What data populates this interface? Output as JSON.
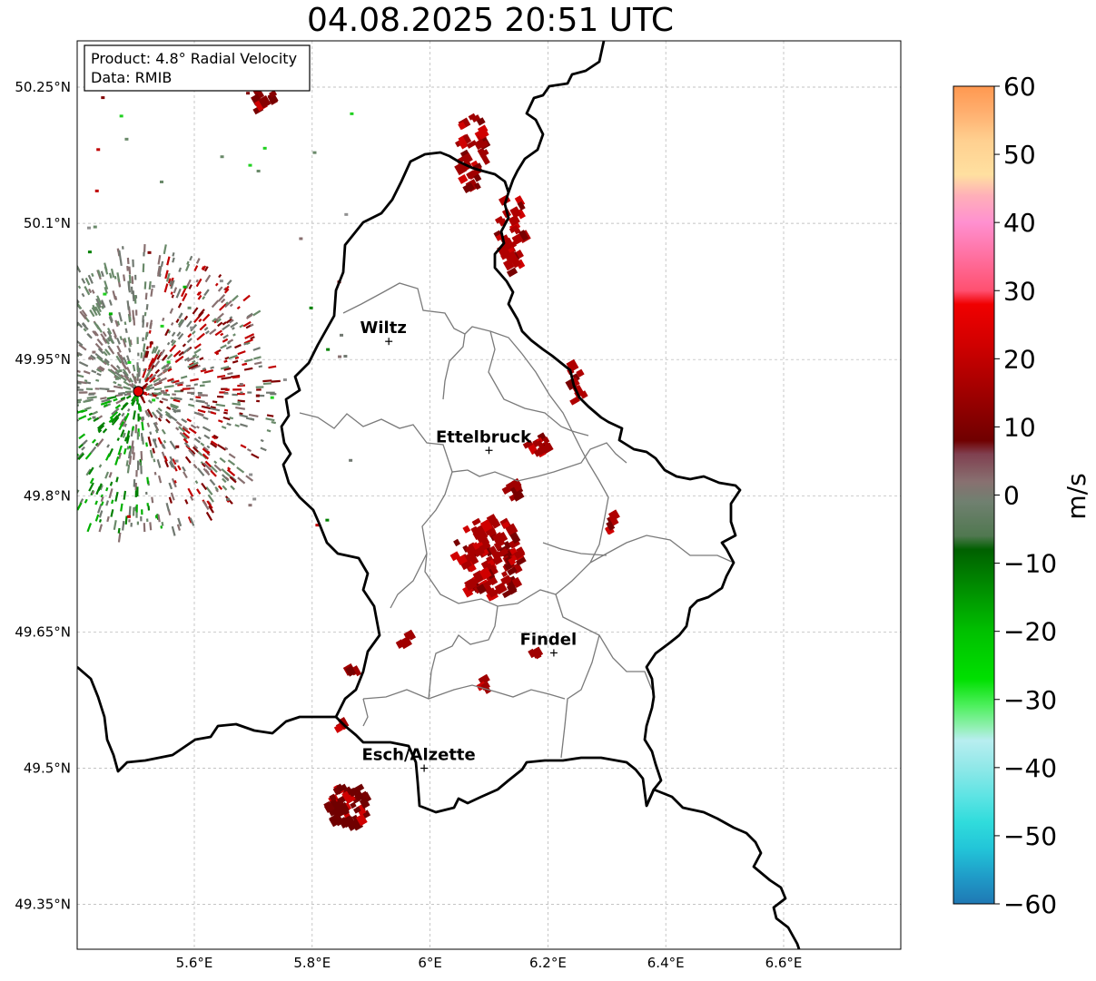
{
  "title": "04.08.2025 20:51 UTC",
  "info_box": {
    "product_line": "Product: 4.8° Radial Velocity",
    "data_line": "Data: RMIB"
  },
  "axes": {
    "lon_ticks": [
      {
        "value": 5.6,
        "label": "5.6°E"
      },
      {
        "value": 5.8,
        "label": "5.8°E"
      },
      {
        "value": 6.0,
        "label": "6°E"
      },
      {
        "value": 6.2,
        "label": "6.2°E"
      },
      {
        "value": 6.4,
        "label": "6.4°E"
      },
      {
        "value": 6.6,
        "label": "6.6°E"
      }
    ],
    "lat_ticks": [
      {
        "value": 50.25,
        "label": "50.25°N"
      },
      {
        "value": 50.1,
        "label": "50.1°N"
      },
      {
        "value": 49.95,
        "label": "49.95°N"
      },
      {
        "value": 49.8,
        "label": "49.8°N"
      },
      {
        "value": 49.65,
        "label": "49.65°N"
      },
      {
        "value": 49.5,
        "label": "49.5°N"
      },
      {
        "value": 49.35,
        "label": "49.35°N"
      }
    ],
    "lon_range": [
      5.4,
      6.8
    ],
    "lat_range": [
      49.3,
      50.3
    ],
    "grid": true
  },
  "cities": [
    {
      "name": "Wiltz",
      "lon": 5.93,
      "lat": 49.97
    },
    {
      "name": "Ettelbruck",
      "lon": 6.1,
      "lat": 49.85
    },
    {
      "name": "Findel",
      "lon": 6.21,
      "lat": 49.627
    },
    {
      "name": "Esch/Alzette",
      "lon": 5.99,
      "lat": 49.5
    }
  ],
  "radar_site": {
    "lon": 5.505,
    "lat": 49.915,
    "color": "#e00000"
  },
  "colorbar": {
    "label": "m/s",
    "min": -60,
    "max": 60,
    "tick_values": [
      60,
      50,
      40,
      30,
      20,
      10,
      0,
      -10,
      -20,
      -30,
      -40,
      -50,
      -60
    ],
    "tick_labels": [
      "60",
      "50",
      "40",
      "30",
      "20",
      "10",
      "0",
      "−10",
      "−20",
      "−30",
      "−40",
      "−50",
      "−60"
    ],
    "stops": [
      {
        "v": -60,
        "c": "#1f78b4"
      },
      {
        "v": -56,
        "c": "#1f9cc8"
      },
      {
        "v": -52,
        "c": "#22c4d8"
      },
      {
        "v": -48,
        "c": "#30dcdc"
      },
      {
        "v": -44,
        "c": "#60e4e4"
      },
      {
        "v": -40,
        "c": "#90e8e8"
      },
      {
        "v": -36,
        "c": "#b8eef0"
      },
      {
        "v": -34,
        "c": "#90f0b0"
      },
      {
        "v": -31,
        "c": "#50f060"
      },
      {
        "v": -27,
        "c": "#00e000"
      },
      {
        "v": -20,
        "c": "#00c000"
      },
      {
        "v": -14,
        "c": "#009000"
      },
      {
        "v": -8,
        "c": "#006000"
      },
      {
        "v": -6,
        "c": "#507850"
      },
      {
        "v": -1,
        "c": "#708070"
      },
      {
        "v": 2,
        "c": "#887070"
      },
      {
        "v": 6,
        "c": "#804050"
      },
      {
        "v": 8,
        "c": "#700000"
      },
      {
        "v": 15,
        "c": "#a00000"
      },
      {
        "v": 22,
        "c": "#d00000"
      },
      {
        "v": 28,
        "c": "#f00000"
      },
      {
        "v": 30,
        "c": "#ff5070"
      },
      {
        "v": 35,
        "c": "#ff70a0"
      },
      {
        "v": 40,
        "c": "#ff90d0"
      },
      {
        "v": 44,
        "c": "#ffb0b8"
      },
      {
        "v": 47,
        "c": "#ffe0a0"
      },
      {
        "v": 52,
        "c": "#ffd090"
      },
      {
        "v": 56,
        "c": "#ffb070"
      },
      {
        "v": 60,
        "c": "#ff9850"
      }
    ]
  },
  "echoes": [
    {
      "lon": 6.1,
      "lat": 49.73,
      "rlon": 0.06,
      "rlat": 0.045,
      "color": "#a80000",
      "n": 120
    },
    {
      "lon": 6.07,
      "lat": 50.18,
      "rlon": 0.025,
      "rlat": 0.045,
      "color": "#a00000",
      "n": 35
    },
    {
      "lon": 6.14,
      "lat": 50.09,
      "rlon": 0.025,
      "rlat": 0.045,
      "color": "#b00000",
      "n": 35
    },
    {
      "lon": 5.86,
      "lat": 49.46,
      "rlon": 0.035,
      "rlat": 0.025,
      "color": "#700000",
      "n": 60
    },
    {
      "lon": 6.185,
      "lat": 49.855,
      "rlon": 0.03,
      "rlat": 0.01,
      "color": "#a00000",
      "n": 14
    },
    {
      "lon": 6.25,
      "lat": 49.93,
      "rlon": 0.02,
      "rlat": 0.03,
      "color": "#b00000",
      "n": 10
    },
    {
      "lon": 6.14,
      "lat": 49.805,
      "rlon": 0.015,
      "rlat": 0.01,
      "color": "#a00000",
      "n": 10
    },
    {
      "lon": 6.31,
      "lat": 49.765,
      "rlon": 0.01,
      "rlat": 0.015,
      "color": "#b00000",
      "n": 6
    },
    {
      "lon": 5.72,
      "lat": 50.24,
      "rlon": 0.02,
      "rlat": 0.02,
      "color": "#880000",
      "n": 10
    },
    {
      "lon": 5.96,
      "lat": 49.64,
      "rlon": 0.012,
      "rlat": 0.012,
      "color": "#a00000",
      "n": 6
    },
    {
      "lon": 5.87,
      "lat": 49.61,
      "rlon": 0.01,
      "rlat": 0.01,
      "color": "#a00000",
      "n": 5
    },
    {
      "lon": 5.85,
      "lat": 49.55,
      "rlon": 0.01,
      "rlat": 0.008,
      "color": "#a00000",
      "n": 4
    },
    {
      "lon": 6.09,
      "lat": 49.59,
      "rlon": 0.01,
      "rlat": 0.01,
      "color": "#a00000",
      "n": 4
    },
    {
      "lon": 6.18,
      "lat": 49.63,
      "rlon": 0.008,
      "rlat": 0.008,
      "color": "#a00000",
      "n": 3
    }
  ],
  "clutter_colors": [
    "#707870",
    "#6a8a6a",
    "#887070",
    "#008000",
    "#00b000",
    "#c00000",
    "#800000",
    "#909090",
    "#20d020"
  ]
}
